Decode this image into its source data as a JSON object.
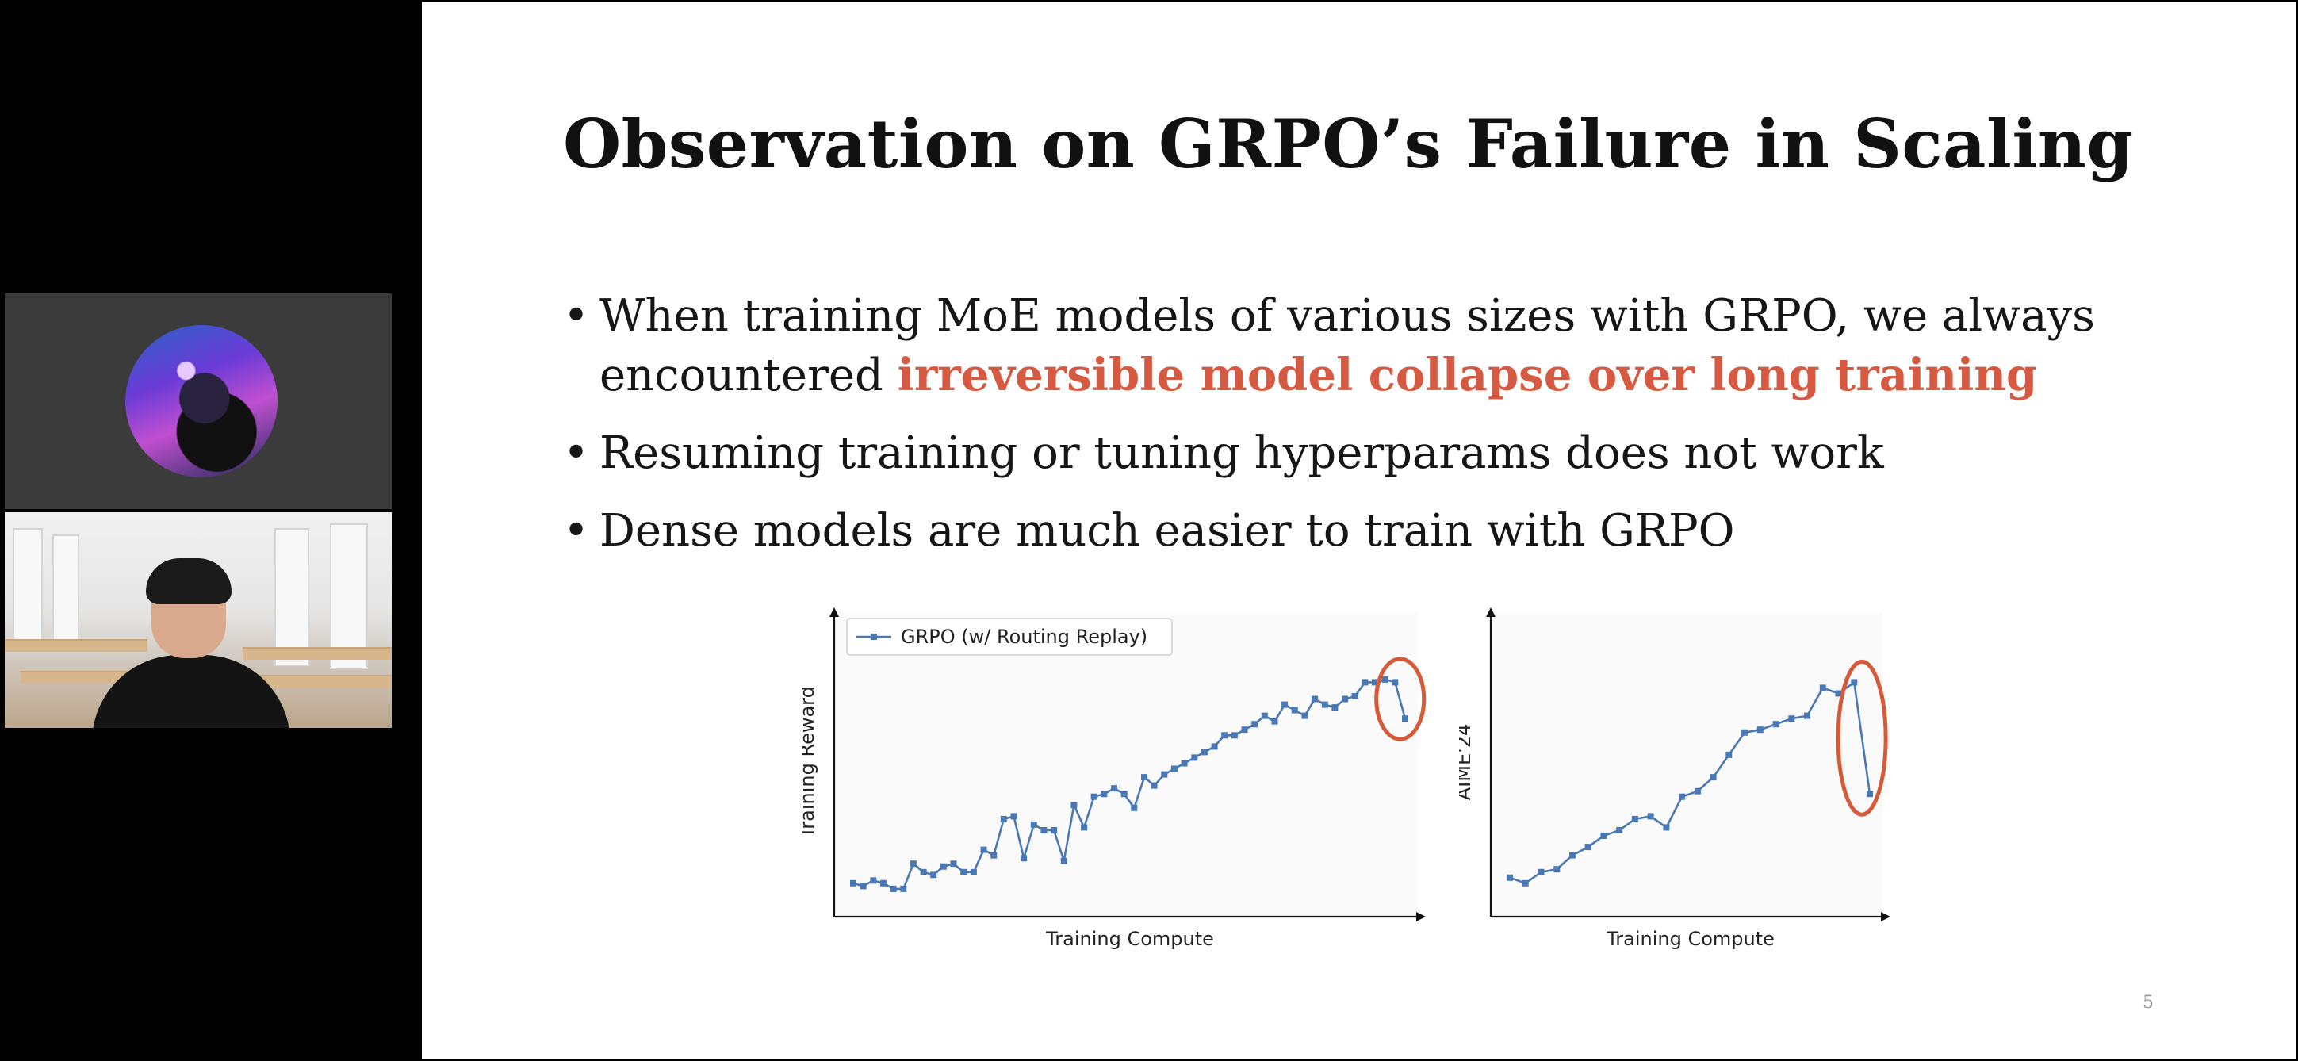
{
  "slide": {
    "title": "Observation on GRPO’s Failure in Scaling",
    "bullets": [
      {
        "text": "When training MoE models of various sizes with GRPO, we always encountered ",
        "highlight": "irreversible model collapse over long training"
      },
      {
        "text": "Resuming training or tuning hyperparams does not work"
      },
      {
        "text": "Dense models are much easier to train with GRPO"
      }
    ],
    "page_number": "5",
    "highlight_color": "#d65a42",
    "bullet_glyph": "•"
  },
  "participants": [
    {
      "name": "participant-avatar"
    },
    {
      "name": "participant-video"
    }
  ],
  "chart_data": [
    {
      "type": "line",
      "xlabel": "Training Compute",
      "ylabel": "Training Reward",
      "legend": "GRPO (w/ Routing Replay)",
      "legend_position": "top-left",
      "color": "#4a78b5",
      "annotation": "collapse circled in red",
      "annotation_color": "#d45a3a",
      "values": [
        0.08,
        0.07,
        0.09,
        0.08,
        0.06,
        0.06,
        0.15,
        0.12,
        0.11,
        0.14,
        0.15,
        0.12,
        0.12,
        0.2,
        0.18,
        0.31,
        0.32,
        0.17,
        0.29,
        0.27,
        0.27,
        0.16,
        0.36,
        0.28,
        0.39,
        0.4,
        0.42,
        0.4,
        0.35,
        0.46,
        0.43,
        0.47,
        0.49,
        0.51,
        0.53,
        0.55,
        0.57,
        0.61,
        0.61,
        0.63,
        0.65,
        0.68,
        0.66,
        0.72,
        0.7,
        0.68,
        0.74,
        0.72,
        0.71,
        0.74,
        0.75,
        0.8,
        0.8,
        0.81,
        0.8,
        0.67
      ]
    },
    {
      "type": "line",
      "xlabel": "Training Compute",
      "ylabel": "AIME'24",
      "color": "#4a78b5",
      "annotation": "collapse circled in red",
      "annotation_color": "#d45a3a",
      "values": [
        0.1,
        0.08,
        0.12,
        0.13,
        0.18,
        0.21,
        0.25,
        0.27,
        0.31,
        0.32,
        0.28,
        0.39,
        0.41,
        0.46,
        0.54,
        0.62,
        0.63,
        0.65,
        0.67,
        0.68,
        0.78,
        0.76,
        0.8,
        0.4
      ]
    }
  ]
}
